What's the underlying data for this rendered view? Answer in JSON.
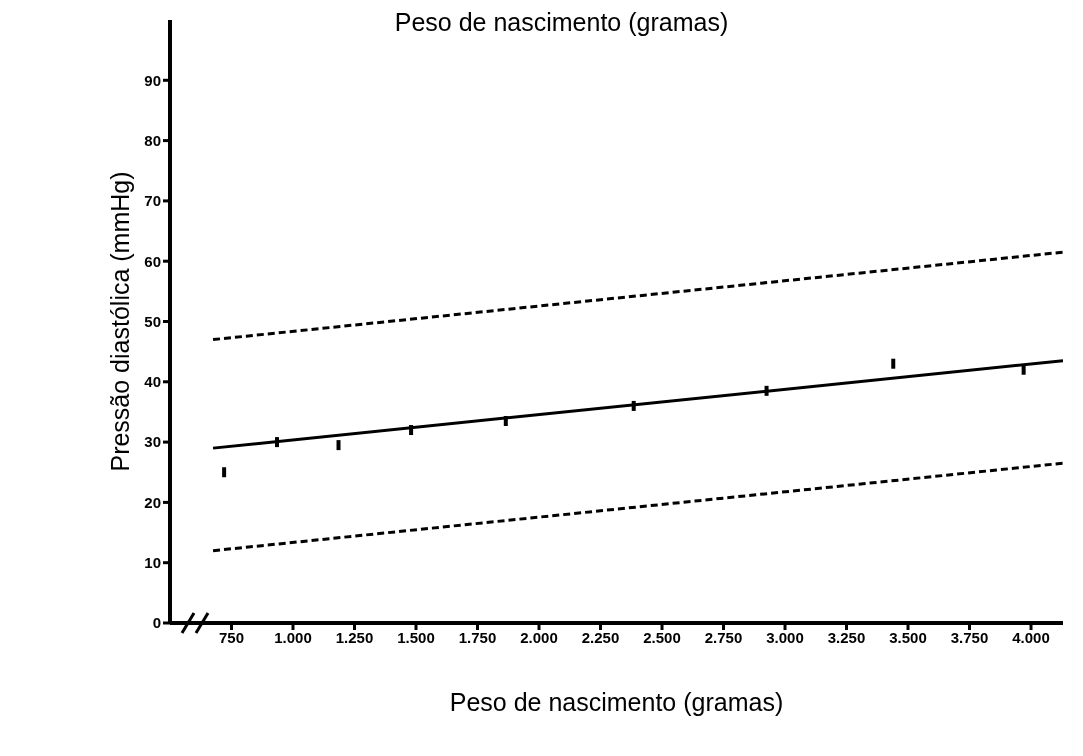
{
  "chart_data": {
    "type": "scatter",
    "title": "Peso de nascimento (gramas)",
    "xlabel": "Peso de nascimento (gramas)",
    "ylabel": "Pressão diastólica (mmHg)",
    "xlim": [
      500,
      4130
    ],
    "xticks": [
      {
        "value": 750,
        "label": "750"
      },
      {
        "value": 1000,
        "label": "1.000"
      },
      {
        "value": 1250,
        "label": "1.250"
      },
      {
        "value": 1500,
        "label": "1.500"
      },
      {
        "value": 1750,
        "label": "1.750"
      },
      {
        "value": 2000,
        "label": "2.000"
      },
      {
        "value": 2250,
        "label": "2.250"
      },
      {
        "value": 2500,
        "label": "2.500"
      },
      {
        "value": 2750,
        "label": "2.750"
      },
      {
        "value": 3000,
        "label": "3.000"
      },
      {
        "value": 3250,
        "label": "3.250"
      },
      {
        "value": 3500,
        "label": "3.500"
      },
      {
        "value": 3750,
        "label": "3.750"
      },
      {
        "value": 4000,
        "label": "4.000"
      }
    ],
    "ylim": [
      0,
      100
    ],
    "yticks": [
      0,
      10,
      20,
      30,
      40,
      50,
      60,
      70,
      80,
      90
    ],
    "grid": false,
    "legend": false,
    "marker": "square",
    "series": [
      {
        "color": "#000000",
        "x": [
          720,
          935,
          1185,
          1480,
          1865,
          2385,
          2925,
          3440,
          3970
        ],
        "values": [
          25,
          30,
          29.5,
          32,
          33.5,
          36,
          38.5,
          43,
          42
        ]
      },
      {
        "type": "line",
        "marker": "none",
        "color": "#000000",
        "line_style": "solid",
        "x": [
          675,
          4130
        ],
        "values": [
          29,
          43.5
        ]
      },
      {
        "type": "line",
        "marker": "none",
        "color": "#000000",
        "line_style": "dashed",
        "x": [
          675,
          4130
        ],
        "values": [
          47,
          61.5
        ]
      },
      {
        "type": "line",
        "marker": "none",
        "color": "#000000",
        "line_style": "dashed",
        "x": [
          675,
          4130
        ],
        "values": [
          12,
          26.5
        ]
      }
    ]
  }
}
